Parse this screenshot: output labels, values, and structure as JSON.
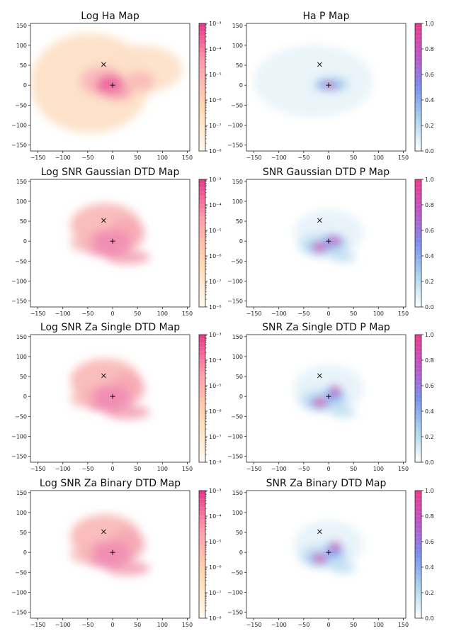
{
  "chart_data": [
    {
      "type": "heatmap",
      "title": "Log Ha Map",
      "xlim": [
        -165,
        155
      ],
      "ylim": [
        -165,
        155
      ],
      "xticks": [
        -150,
        -100,
        -50,
        0,
        50,
        100,
        150
      ],
      "yticks": [
        150,
        100,
        50,
        0,
        -50,
        -100,
        -150
      ],
      "colorbar": {
        "scale": "log",
        "range": [
          1e-08,
          0.001
        ],
        "tick_labels": [
          "10⁻³",
          "10⁻⁴",
          "10⁻⁵",
          "10⁻⁶",
          "10⁻⁷",
          "10⁻⁸"
        ],
        "colors": [
          "#fffaf0",
          "#ffd9b0",
          "#ff9aa8",
          "#e8338a"
        ]
      },
      "markers": [
        {
          "symbol": "x",
          "x": -18,
          "y": 52
        },
        {
          "symbol": "+",
          "x": 0,
          "y": 0
        }
      ],
      "colormap": "log_peach_pink"
    },
    {
      "type": "heatmap",
      "title": "Ha P Map",
      "xlim": [
        -165,
        155
      ],
      "ylim": [
        -165,
        155
      ],
      "xticks": [
        -150,
        -100,
        -50,
        0,
        50,
        100,
        150
      ],
      "yticks": [
        150,
        100,
        50,
        0,
        -50,
        -100,
        -150
      ],
      "colorbar": {
        "scale": "linear",
        "range": [
          0,
          1
        ],
        "tick_labels": [
          "1.0",
          "0.8",
          "0.6",
          "0.4",
          "0.2",
          "0.0"
        ],
        "colors": [
          "#ffffff",
          "#a8d4ec",
          "#7b8ff0",
          "#c055c8",
          "#ee3a8c"
        ]
      },
      "markers": [
        {
          "symbol": "x",
          "x": -18,
          "y": 52
        },
        {
          "symbol": "+",
          "x": 0,
          "y": 0
        }
      ],
      "colormap": "prob_blue_pink"
    },
    {
      "type": "heatmap",
      "title": "Log SNR Gaussian DTD Map",
      "xlim": [
        -165,
        155
      ],
      "ylim": [
        -165,
        155
      ],
      "xticks": [
        -150,
        -100,
        -50,
        0,
        50,
        100,
        150
      ],
      "yticks": [
        150,
        100,
        50,
        0,
        -50,
        -100,
        -150
      ],
      "colorbar": {
        "scale": "log",
        "range": [
          1e-08,
          0.001
        ],
        "tick_labels": [
          "10⁻³",
          "10⁻⁴",
          "10⁻⁵",
          "10⁻⁶",
          "10⁻⁷",
          "10⁻⁸"
        ],
        "colors": [
          "#fffaf0",
          "#ffd9b0",
          "#ff9aa8",
          "#e8338a"
        ]
      },
      "markers": [
        {
          "symbol": "x",
          "x": -18,
          "y": 52
        },
        {
          "symbol": "+",
          "x": 0,
          "y": 0
        }
      ],
      "colormap": "log_peach_pink"
    },
    {
      "type": "heatmap",
      "title": "SNR Gaussian DTD P Map",
      "xlim": [
        -165,
        155
      ],
      "ylim": [
        -165,
        155
      ],
      "xticks": [
        -150,
        -100,
        -50,
        0,
        50,
        100,
        150
      ],
      "yticks": [
        150,
        100,
        50,
        0,
        -50,
        -100,
        -150
      ],
      "colorbar": {
        "scale": "linear",
        "range": [
          0,
          1
        ],
        "tick_labels": [
          "1.0",
          "0.8",
          "0.6",
          "0.4",
          "0.2",
          "0.0"
        ],
        "colors": [
          "#ffffff",
          "#a8d4ec",
          "#7b8ff0",
          "#c055c8",
          "#ee3a8c"
        ]
      },
      "markers": [
        {
          "symbol": "x",
          "x": -18,
          "y": 52
        },
        {
          "symbol": "+",
          "x": 0,
          "y": 0
        }
      ],
      "colormap": "prob_blue_pink"
    },
    {
      "type": "heatmap",
      "title": "Log SNR Za Single DTD Map",
      "xlim": [
        -165,
        155
      ],
      "ylim": [
        -165,
        155
      ],
      "xticks": [
        -150,
        -100,
        -50,
        0,
        50,
        100,
        150
      ],
      "yticks": [
        150,
        100,
        50,
        0,
        -50,
        -100,
        -150
      ],
      "colorbar": {
        "scale": "log",
        "range": [
          1e-08,
          0.001
        ],
        "tick_labels": [
          "10⁻³",
          "10⁻⁴",
          "10⁻⁵",
          "10⁻⁶",
          "10⁻⁷",
          "10⁻⁸"
        ],
        "colors": [
          "#fffaf0",
          "#ffd9b0",
          "#ff9aa8",
          "#e8338a"
        ]
      },
      "markers": [
        {
          "symbol": "x",
          "x": -18,
          "y": 52
        },
        {
          "symbol": "+",
          "x": 0,
          "y": 0
        }
      ],
      "colormap": "log_peach_pink"
    },
    {
      "type": "heatmap",
      "title": "SNR Za Single DTD P Map",
      "xlim": [
        -165,
        155
      ],
      "ylim": [
        -165,
        155
      ],
      "xticks": [
        -150,
        -100,
        -50,
        0,
        50,
        100,
        150
      ],
      "yticks": [
        150,
        100,
        50,
        0,
        -50,
        -100,
        -150
      ],
      "colorbar": {
        "scale": "linear",
        "range": [
          0,
          1
        ],
        "tick_labels": [
          "1.0",
          "0.8",
          "0.6",
          "0.4",
          "0.2",
          "0.0"
        ],
        "colors": [
          "#ffffff",
          "#a8d4ec",
          "#7b8ff0",
          "#c055c8",
          "#ee3a8c"
        ]
      },
      "markers": [
        {
          "symbol": "x",
          "x": -18,
          "y": 52
        },
        {
          "symbol": "+",
          "x": 0,
          "y": 0
        }
      ],
      "colormap": "prob_blue_pink"
    },
    {
      "type": "heatmap",
      "title": "Log SNR Za Binary DTD Map",
      "xlim": [
        -165,
        155
      ],
      "ylim": [
        -165,
        155
      ],
      "xticks": [
        -150,
        -100,
        -50,
        0,
        50,
        100,
        150
      ],
      "yticks": [
        150,
        100,
        50,
        0,
        -50,
        -100,
        -150
      ],
      "colorbar": {
        "scale": "log",
        "range": [
          1e-08,
          0.001
        ],
        "tick_labels": [
          "10⁻³",
          "10⁻⁴",
          "10⁻⁵",
          "10⁻⁶",
          "10⁻⁷",
          "10⁻⁸"
        ],
        "colors": [
          "#fffaf0",
          "#ffd9b0",
          "#ff9aa8",
          "#e8338a"
        ]
      },
      "markers": [
        {
          "symbol": "x",
          "x": -18,
          "y": 52
        },
        {
          "symbol": "+",
          "x": 0,
          "y": 0
        }
      ],
      "colormap": "log_peach_pink"
    },
    {
      "type": "heatmap",
      "title": "SNR Za Binary DTD Map",
      "xlim": [
        -165,
        155
      ],
      "ylim": [
        -165,
        155
      ],
      "xticks": [
        -150,
        -100,
        -50,
        0,
        50,
        100,
        150
      ],
      "yticks": [
        150,
        100,
        50,
        0,
        -50,
        -100,
        -150
      ],
      "colorbar": {
        "scale": "linear",
        "range": [
          0,
          1
        ],
        "tick_labels": [
          "1.0",
          "0.8",
          "0.6",
          "0.4",
          "0.2",
          "0.0"
        ],
        "colors": [
          "#ffffff",
          "#a8d4ec",
          "#7b8ff0",
          "#c055c8",
          "#ee3a8c"
        ]
      },
      "markers": [
        {
          "symbol": "x",
          "x": -18,
          "y": 52
        },
        {
          "symbol": "+",
          "x": 0,
          "y": 0
        }
      ],
      "colormap": "prob_blue_pink"
    }
  ]
}
